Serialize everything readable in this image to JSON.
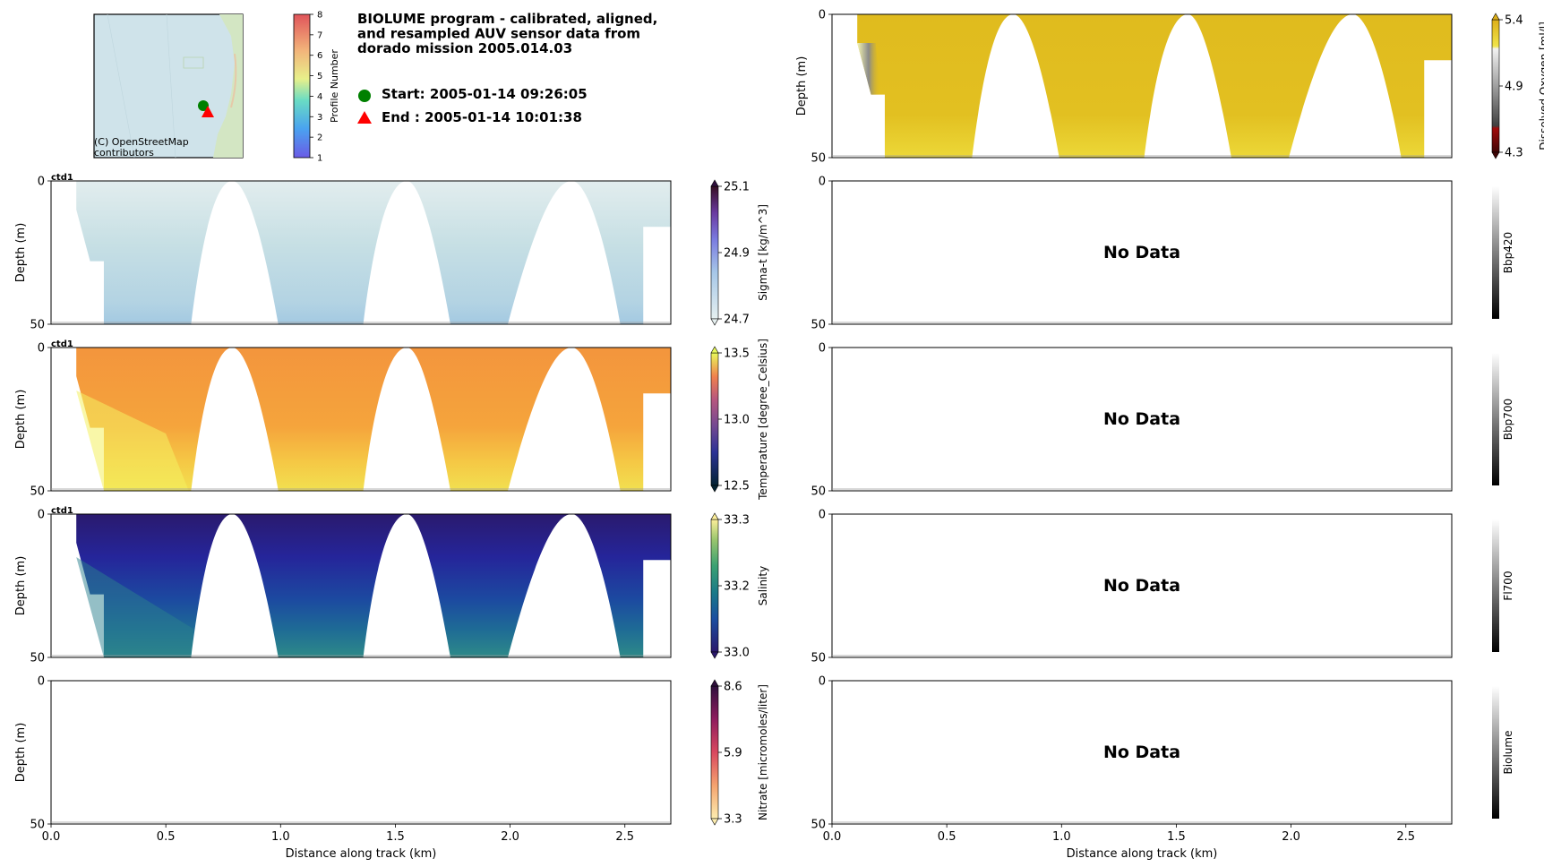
{
  "title": "BIOLUME program - calibrated, aligned,\nand resampled AUV sensor data from\ndorado mission 2005.014.03",
  "start_label": "Start: 2005-01-14 09:26:05",
  "end_label": "End  : 2005-01-14 10:01:38",
  "start_color": "#008000",
  "end_color": "#ff0000",
  "map": {
    "attribution": "(C) OpenStreetMap\ncontributors",
    "colorbar_label": "Profile Number",
    "colorbar_ticks": [
      "1",
      "2",
      "3",
      "4",
      "5",
      "6",
      "7",
      "8"
    ]
  },
  "no_data_text": "No Data",
  "instrument_tag": "ctd1",
  "chart_data": [
    {
      "type": "heatmap",
      "panel": "left-1",
      "variable": "sigma_t",
      "ylabel": "Depth (m)",
      "cbar_label": "Sigma-t [kg/m^3]",
      "cbar_ticks": [
        "25.1",
        "24.9",
        "24.7"
      ],
      "clim": [
        24.7,
        25.1
      ],
      "colormap": "dense",
      "xlim": [
        0,
        2.7
      ],
      "ylim": [
        50,
        0
      ],
      "yticks": [
        "0",
        "50"
      ],
      "has_data": true,
      "tag": "ctd1"
    },
    {
      "type": "heatmap",
      "panel": "left-2",
      "variable": "temperature",
      "ylabel": "Depth (m)",
      "cbar_label": "Temperature [degree_Celsius]",
      "cbar_ticks": [
        "13.5",
        "13.0",
        "12.5"
      ],
      "clim": [
        12.5,
        13.5
      ],
      "colormap": "thermal",
      "xlim": [
        0,
        2.7
      ],
      "ylim": [
        50,
        0
      ],
      "yticks": [
        "0",
        "50"
      ],
      "has_data": true,
      "tag": "ctd1"
    },
    {
      "type": "heatmap",
      "panel": "left-3",
      "variable": "salinity",
      "ylabel": "Depth (m)",
      "cbar_label": "Salinity",
      "cbar_ticks": [
        "33.3",
        "33.2",
        "33.0"
      ],
      "clim": [
        33.0,
        33.3
      ],
      "colormap": "haline",
      "xlim": [
        0,
        2.7
      ],
      "ylim": [
        50,
        0
      ],
      "yticks": [
        "0",
        "50"
      ],
      "has_data": true,
      "tag": "ctd1"
    },
    {
      "type": "heatmap",
      "panel": "left-4",
      "variable": "nitrate",
      "ylabel": "Depth (m)",
      "cbar_label": "Nitrate [micromoles/liter]",
      "cbar_ticks": [
        "8.6",
        "5.9",
        "3.3"
      ],
      "clim": [
        3.3,
        8.6
      ],
      "colormap": "matter",
      "xlim": [
        0,
        2.7
      ],
      "ylim": [
        50,
        0
      ],
      "yticks": [
        "0",
        "50"
      ],
      "xticks": [
        "0.0",
        "0.5",
        "1.0",
        "1.5",
        "2.0",
        "2.5"
      ],
      "xlabel": "Distance along track (km)",
      "has_data": false
    },
    {
      "type": "heatmap",
      "panel": "right-0",
      "variable": "dissolved_oxygen",
      "ylabel": "Depth (m)",
      "cbar_label": "Dissolved Oxygen [ml/l]",
      "cbar_ticks": [
        "5.4",
        "4.9",
        "4.3"
      ],
      "clim": [
        4.3,
        5.4
      ],
      "colormap": "oxy",
      "xlim": [
        0,
        2.7
      ],
      "ylim": [
        50,
        0
      ],
      "yticks": [
        "0",
        "50"
      ],
      "has_data": true
    },
    {
      "type": "heatmap",
      "panel": "right-1",
      "variable": "bbp420",
      "cbar_label": "Bbp420",
      "colormap": "gray",
      "xlim": [
        0,
        2.7
      ],
      "ylim": [
        50,
        0
      ],
      "yticks": [
        "0",
        "50"
      ],
      "has_data": false
    },
    {
      "type": "heatmap",
      "panel": "right-2",
      "variable": "bbp700",
      "cbar_label": "Bbp700",
      "colormap": "gray",
      "xlim": [
        0,
        2.7
      ],
      "ylim": [
        50,
        0
      ],
      "yticks": [
        "0",
        "50"
      ],
      "has_data": false
    },
    {
      "type": "heatmap",
      "panel": "right-3",
      "variable": "fl700",
      "cbar_label": "Fl700",
      "colormap": "gray",
      "xlim": [
        0,
        2.7
      ],
      "ylim": [
        50,
        0
      ],
      "yticks": [
        "0",
        "50"
      ],
      "has_data": false
    },
    {
      "type": "heatmap",
      "panel": "right-4",
      "variable": "biolume",
      "cbar_label": "Biolume",
      "colormap": "gray",
      "xlim": [
        0,
        2.7
      ],
      "ylim": [
        50,
        0
      ],
      "yticks": [
        "0",
        "50"
      ],
      "xticks": [
        "0.0",
        "0.5",
        "1.0",
        "1.5",
        "2.0",
        "2.5"
      ],
      "xlabel": "Distance along track (km)",
      "has_data": false
    }
  ]
}
